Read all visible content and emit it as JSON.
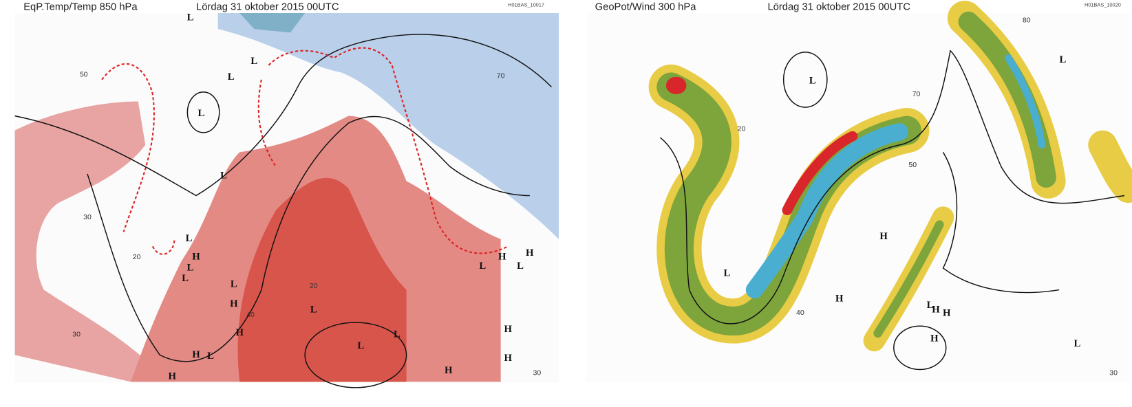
{
  "panels": [
    {
      "title": "EqP.Temp/Temp 850 hPa",
      "date": "Lördag 31 oktober 2015 00UTC",
      "code": "H01BAS_10017",
      "labels": [
        "L",
        "L",
        "L",
        "L",
        "L",
        "L",
        "H",
        "L",
        "L",
        "L",
        "H",
        "L",
        "L",
        "L",
        "H",
        "H",
        "H",
        "L",
        "H",
        "L",
        "H",
        "H",
        "L",
        "H",
        "H"
      ],
      "contour_values": [
        "50",
        "30",
        "20",
        "40",
        "30",
        "70",
        "30",
        "20"
      ]
    },
    {
      "title": "GeoPot/Wind 300 hPa",
      "date": "Lördag 31 oktober 2015 00UTC",
      "code": "H01BAS_10020",
      "labels": [
        "L",
        "L",
        "H",
        "L",
        "H",
        "L",
        "H",
        "H",
        "H",
        "L"
      ],
      "contour_values": [
        "70",
        "50",
        "30",
        "40",
        "20",
        "80"
      ]
    }
  ]
}
